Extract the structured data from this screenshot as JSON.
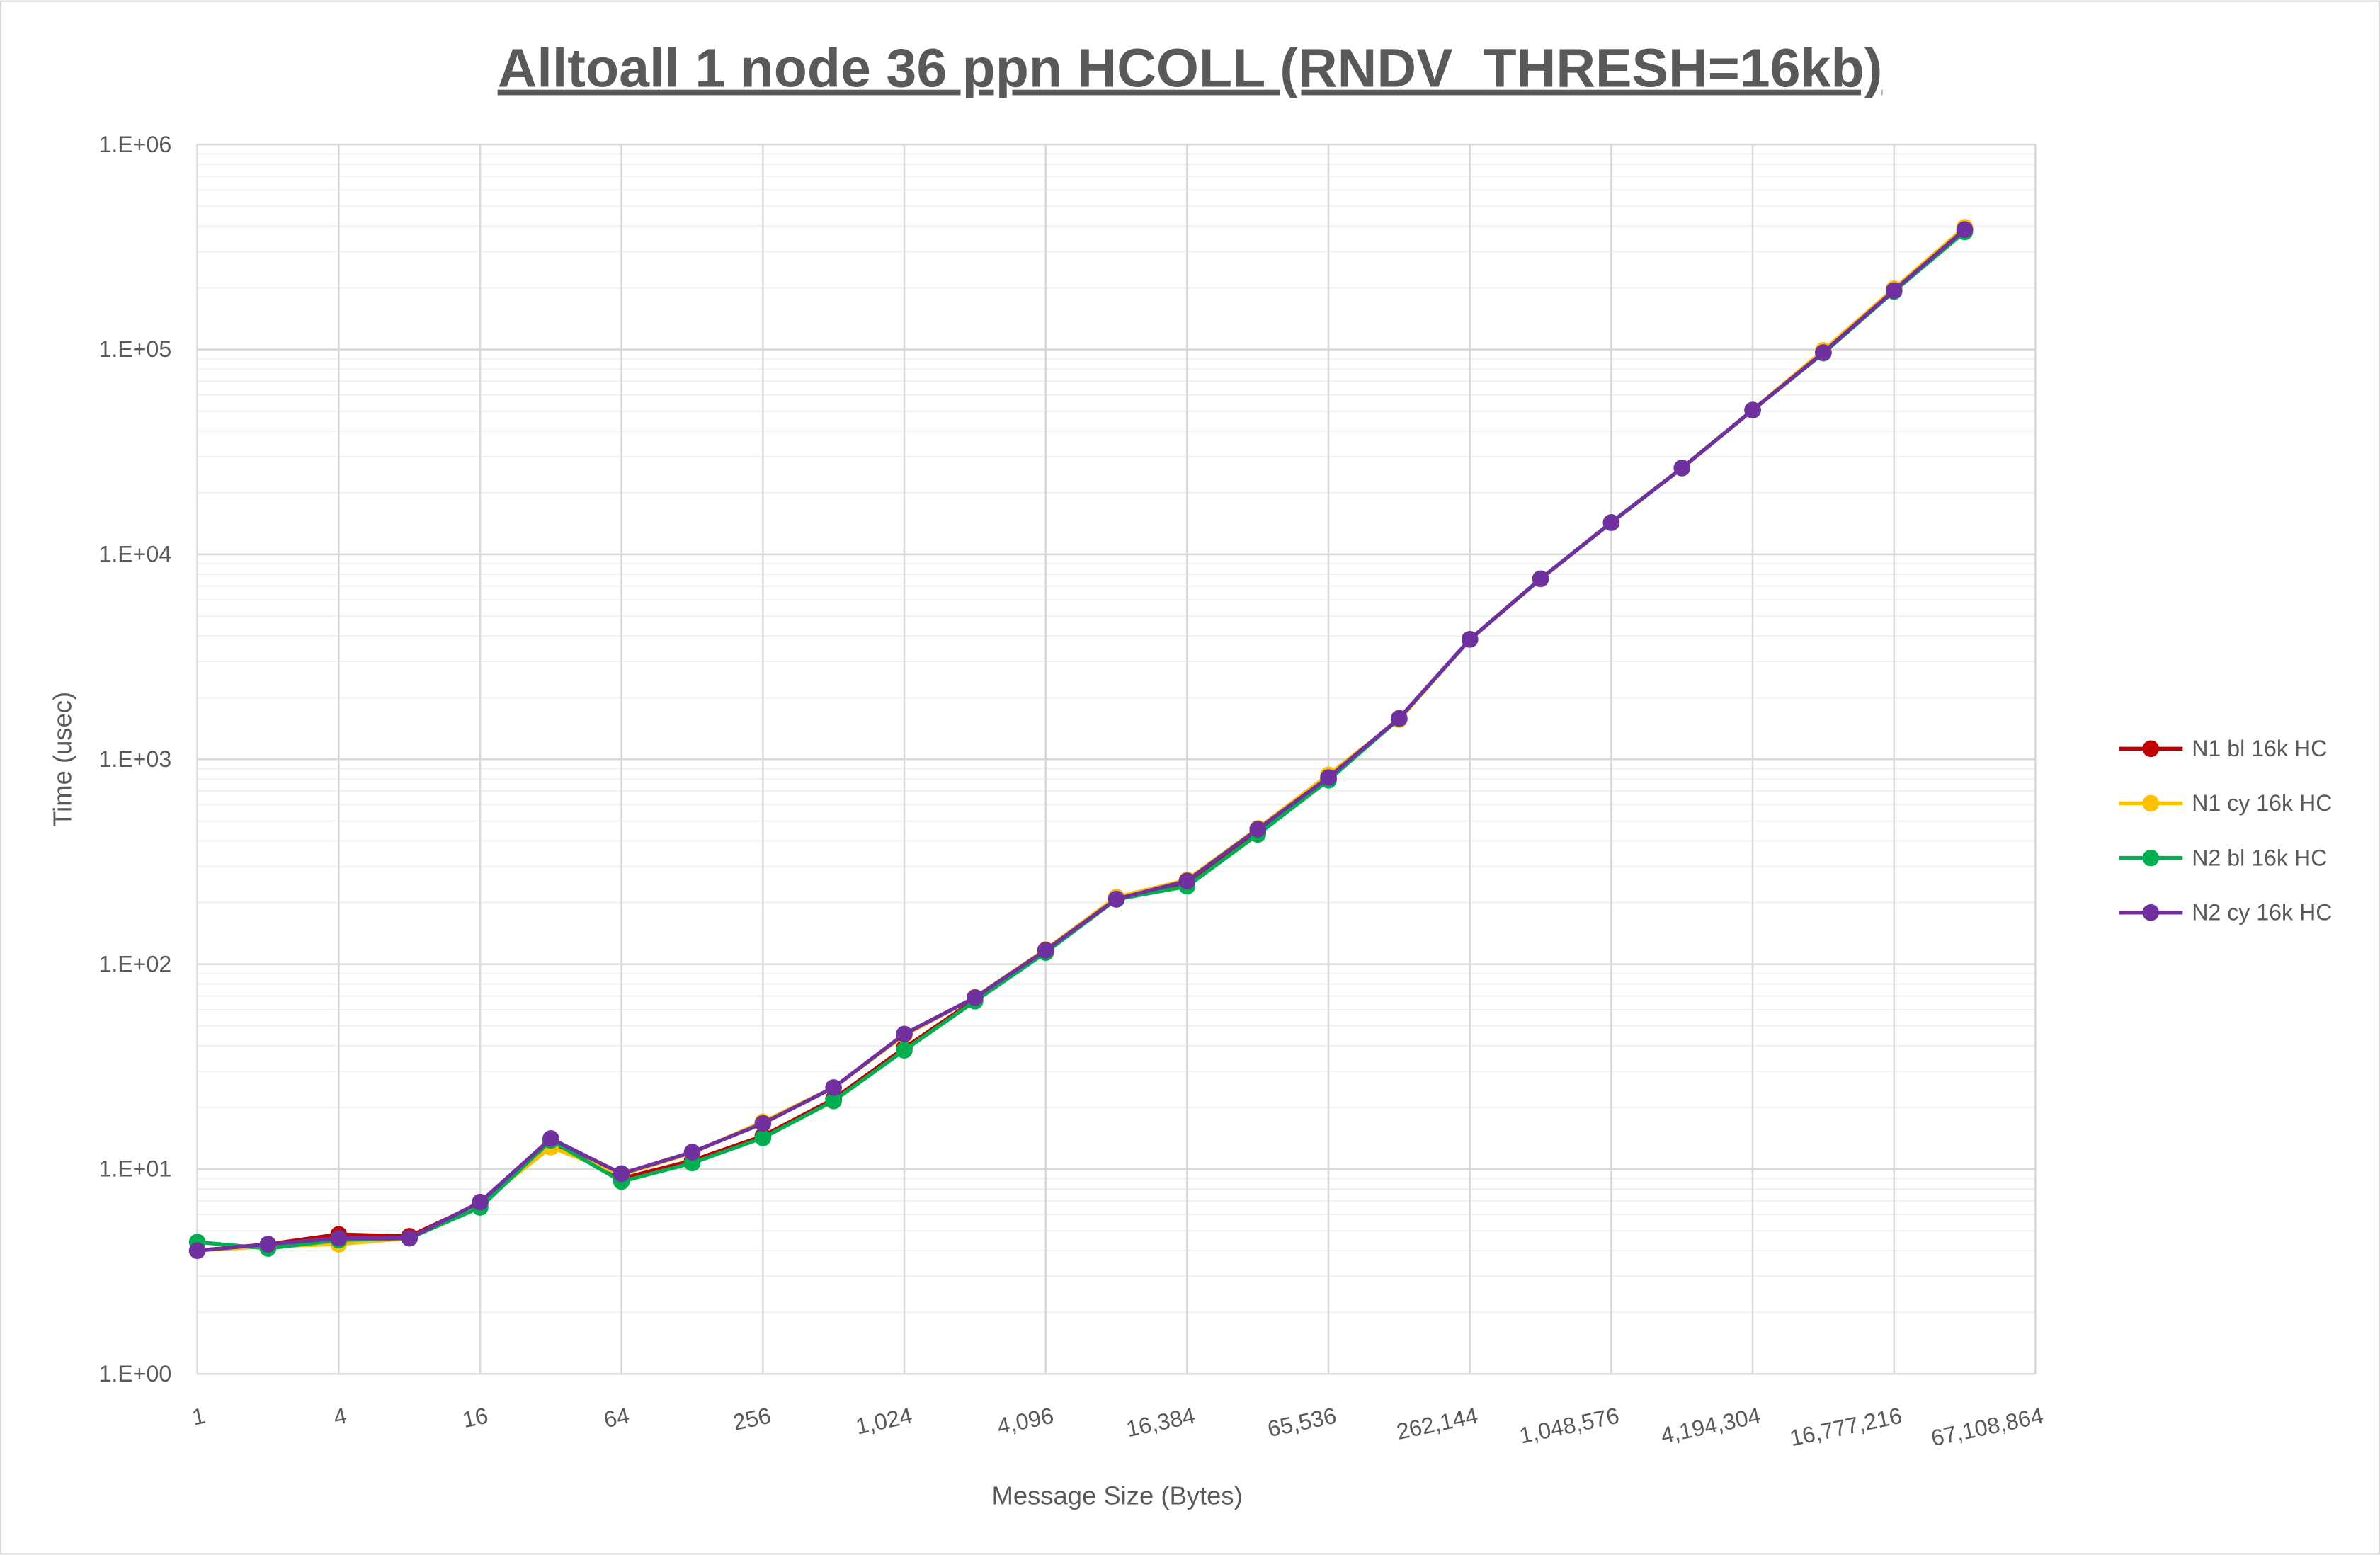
{
  "chart_data": {
    "type": "line",
    "title": "Alltoall 1 node 36 ppn HCOLL (RNDV_THRESH=16kb)",
    "xlabel": "Message Size (Bytes)",
    "ylabel": "Time (usec)",
    "xscale": "log2",
    "yscale": "log10",
    "xlim": [
      1,
      67108864
    ],
    "ylim": [
      1,
      1000000
    ],
    "grid": true,
    "legend": "right",
    "x_tick_labels": [
      "1",
      "4",
      "16",
      "64",
      "256",
      "1,024",
      "4,096",
      "16,384",
      "65,536",
      "262,144",
      "1,048,576",
      "4,194,304",
      "16,777,216",
      "67,108,864"
    ],
    "y_tick_labels": [
      "1.E+00",
      "1.E+01",
      "1.E+02",
      "1.E+03",
      "1.E+04",
      "1.E+05",
      "1.E+06"
    ],
    "x": [
      1,
      2,
      4,
      8,
      16,
      32,
      64,
      128,
      256,
      512,
      1024,
      2048,
      4096,
      8192,
      16384,
      32768,
      65536,
      131072,
      262144,
      524288,
      1048576,
      2097152,
      4194304,
      8388608,
      16777216,
      33554432
    ],
    "series": [
      {
        "name": "N1 bl 16k HC",
        "color": "#c00000",
        "values": [
          4.0,
          4.3,
          4.8,
          4.7,
          6.8,
          13.5,
          9.0,
          11.0,
          14.5,
          22,
          39,
          67,
          116,
          212,
          250,
          440,
          800,
          1580,
          3850,
          7600,
          14300,
          26400,
          50600,
          97000,
          195000,
          385000
        ]
      },
      {
        "name": "N1 cy 16k HC",
        "color": "#ffc000",
        "values": [
          4.0,
          4.2,
          4.3,
          4.6,
          6.8,
          12.8,
          9.4,
          12.0,
          17,
          25,
          45,
          69,
          118,
          212,
          258,
          460,
          840,
          1560,
          3850,
          7600,
          14300,
          26400,
          50600,
          99000,
          198000,
          395000
        ]
      },
      {
        "name": "N2 bl 16k HC",
        "color": "#00b050",
        "values": [
          4.4,
          4.1,
          4.5,
          4.6,
          6.5,
          13.8,
          8.7,
          10.7,
          14.2,
          21.5,
          38,
          66,
          114,
          207,
          240,
          430,
          790,
          1580,
          3850,
          7600,
          14300,
          26400,
          50600,
          96000,
          192000,
          375000
        ]
      },
      {
        "name": "N2 cy 16k HC",
        "color": "#7030a0",
        "values": [
          4.0,
          4.3,
          4.6,
          4.6,
          6.9,
          14.1,
          9.5,
          12.1,
          16.7,
          25,
          45.6,
          68.7,
          117,
          208,
          255,
          456,
          815,
          1585,
          3850,
          7600,
          14300,
          26400,
          50600,
          96600,
          194000,
          385000
        ]
      }
    ]
  }
}
